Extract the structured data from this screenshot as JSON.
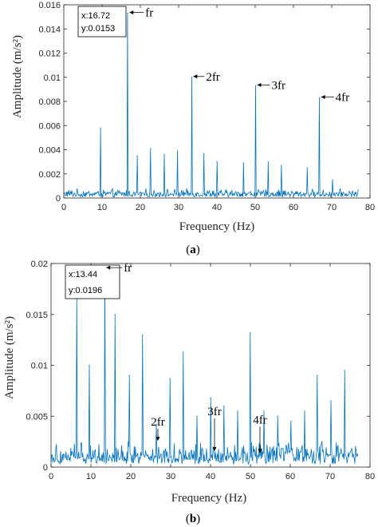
{
  "colors": {
    "line": "#0072BD",
    "axis": "#262626",
    "box": "#d9d9d9"
  },
  "chart_data": [
    {
      "type": "line",
      "caption_letter": "a",
      "xlabel": "Frequency (Hz)",
      "ylabel": "Amplitude (m/s²)",
      "xlim": [
        0,
        80
      ],
      "ylim": [
        0,
        0.016
      ],
      "xticks": [
        "0",
        "10",
        "20",
        "30",
        "40",
        "50",
        "60",
        "70",
        "80"
      ],
      "yticks": [
        "0",
        "0.002",
        "0.004",
        "0.006",
        "0.008",
        "0.01",
        "0.012",
        "0.014",
        "0.016"
      ],
      "grid": false,
      "x_max": 77,
      "noise_level": 0.0006,
      "peaks": [
        [
          9.6,
          0.0058
        ],
        [
          16.72,
          0.0153
        ],
        [
          19.2,
          0.0035
        ],
        [
          22.7,
          0.0041
        ],
        [
          26.3,
          0.0036
        ],
        [
          29.7,
          0.0039
        ],
        [
          33.4,
          0.01
        ],
        [
          36.6,
          0.0037
        ],
        [
          40.0,
          0.003
        ],
        [
          46.9,
          0.0029
        ],
        [
          50.1,
          0.0093
        ],
        [
          53.4,
          0.003
        ],
        [
          56.8,
          0.0027
        ],
        [
          63.6,
          0.0025
        ],
        [
          66.8,
          0.0083
        ],
        [
          70.2,
          0.0015
        ]
      ],
      "datatip": {
        "x_text": "x:16.72",
        "y_text": "y:0.0153"
      },
      "annotations": [
        {
          "text": "fr",
          "x": 16.72,
          "y": 0.0153
        },
        {
          "text": "2fr",
          "x": 33.4,
          "y": 0.01
        },
        {
          "text": "3fr",
          "x": 50.1,
          "y": 0.0093
        },
        {
          "text": "4fr",
          "x": 66.8,
          "y": 0.0083
        }
      ]
    },
    {
      "type": "line",
      "caption_letter": "b",
      "xlabel": "Frequency (Hz)",
      "ylabel": "Amplitude (m/s²)",
      "xlim": [
        0,
        80
      ],
      "ylim": [
        0,
        0.02
      ],
      "xticks": [
        "0",
        "10",
        "20",
        "30",
        "40",
        "50",
        "60",
        "70",
        "80"
      ],
      "yticks": [
        "0",
        "0.005",
        "0.01",
        "0.015",
        "0.02"
      ],
      "grid": false,
      "x_max": 77,
      "noise_level": 0.002,
      "peaks": [
        [
          6.4,
          0.017
        ],
        [
          9.6,
          0.01
        ],
        [
          13.44,
          0.0196
        ],
        [
          16.0,
          0.015
        ],
        [
          19.6,
          0.009
        ],
        [
          23.0,
          0.013
        ],
        [
          26.4,
          0.0042
        ],
        [
          29.8,
          0.0087
        ],
        [
          33.2,
          0.0113
        ],
        [
          36.6,
          0.005
        ],
        [
          40.0,
          0.0068
        ],
        [
          43.4,
          0.006
        ],
        [
          46.8,
          0.0055
        ],
        [
          50.0,
          0.0132
        ],
        [
          53.4,
          0.0055
        ],
        [
          56.8,
          0.005
        ],
        [
          60.2,
          0.0045
        ],
        [
          63.6,
          0.0055
        ],
        [
          66.8,
          0.009
        ],
        [
          70.2,
          0.0065
        ],
        [
          73.6,
          0.0095
        ]
      ],
      "datatip": {
        "x_text": "x:13.44",
        "y_text": "y:0.0196"
      },
      "annotations": [
        {
          "text": "fr",
          "x": 13.44,
          "y": 0.0196
        },
        {
          "text": "2fr",
          "x": 26.8,
          "y": 0.0025
        },
        {
          "text": "3fr",
          "x": 41.0,
          "y": 0.0015
        },
        {
          "text": "4fr",
          "x": 52.4,
          "y": 0.0013
        }
      ]
    }
  ]
}
